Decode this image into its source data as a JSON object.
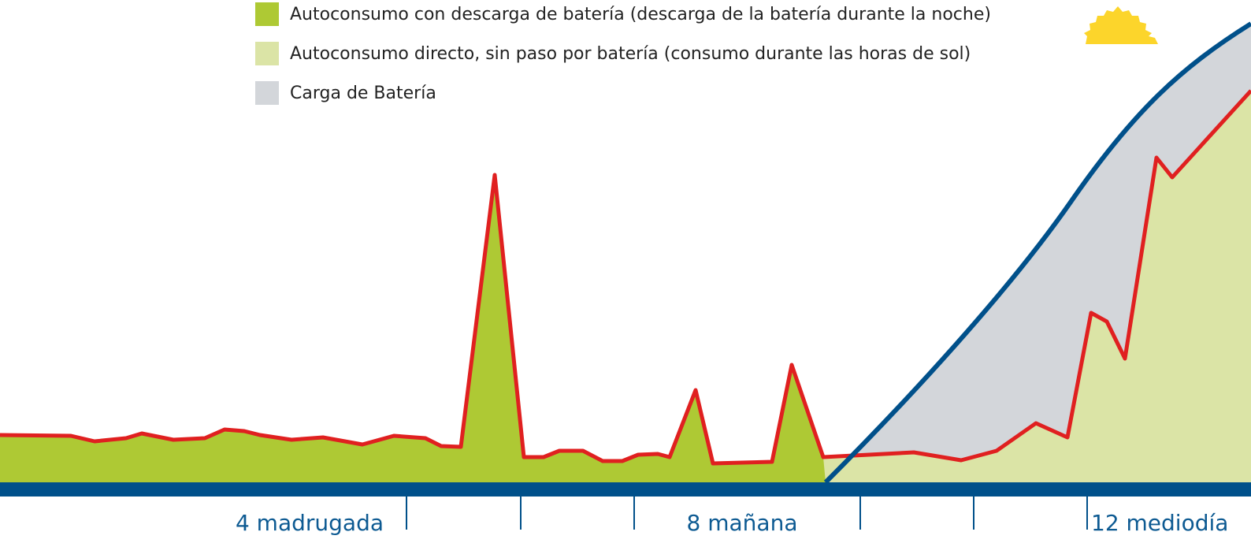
{
  "legend": [
    {
      "label": "Autoconsumo con descarga de batería (descarga de la batería durante la noche)"
    },
    {
      "label": "Autoconsumo directo, sin paso por batería (consumo durante las horas de sol)"
    },
    {
      "label": "Carga de Batería"
    }
  ],
  "axis_labels": [
    "4 madrugada",
    "8 mañana",
    "12 mediodía"
  ]
}
